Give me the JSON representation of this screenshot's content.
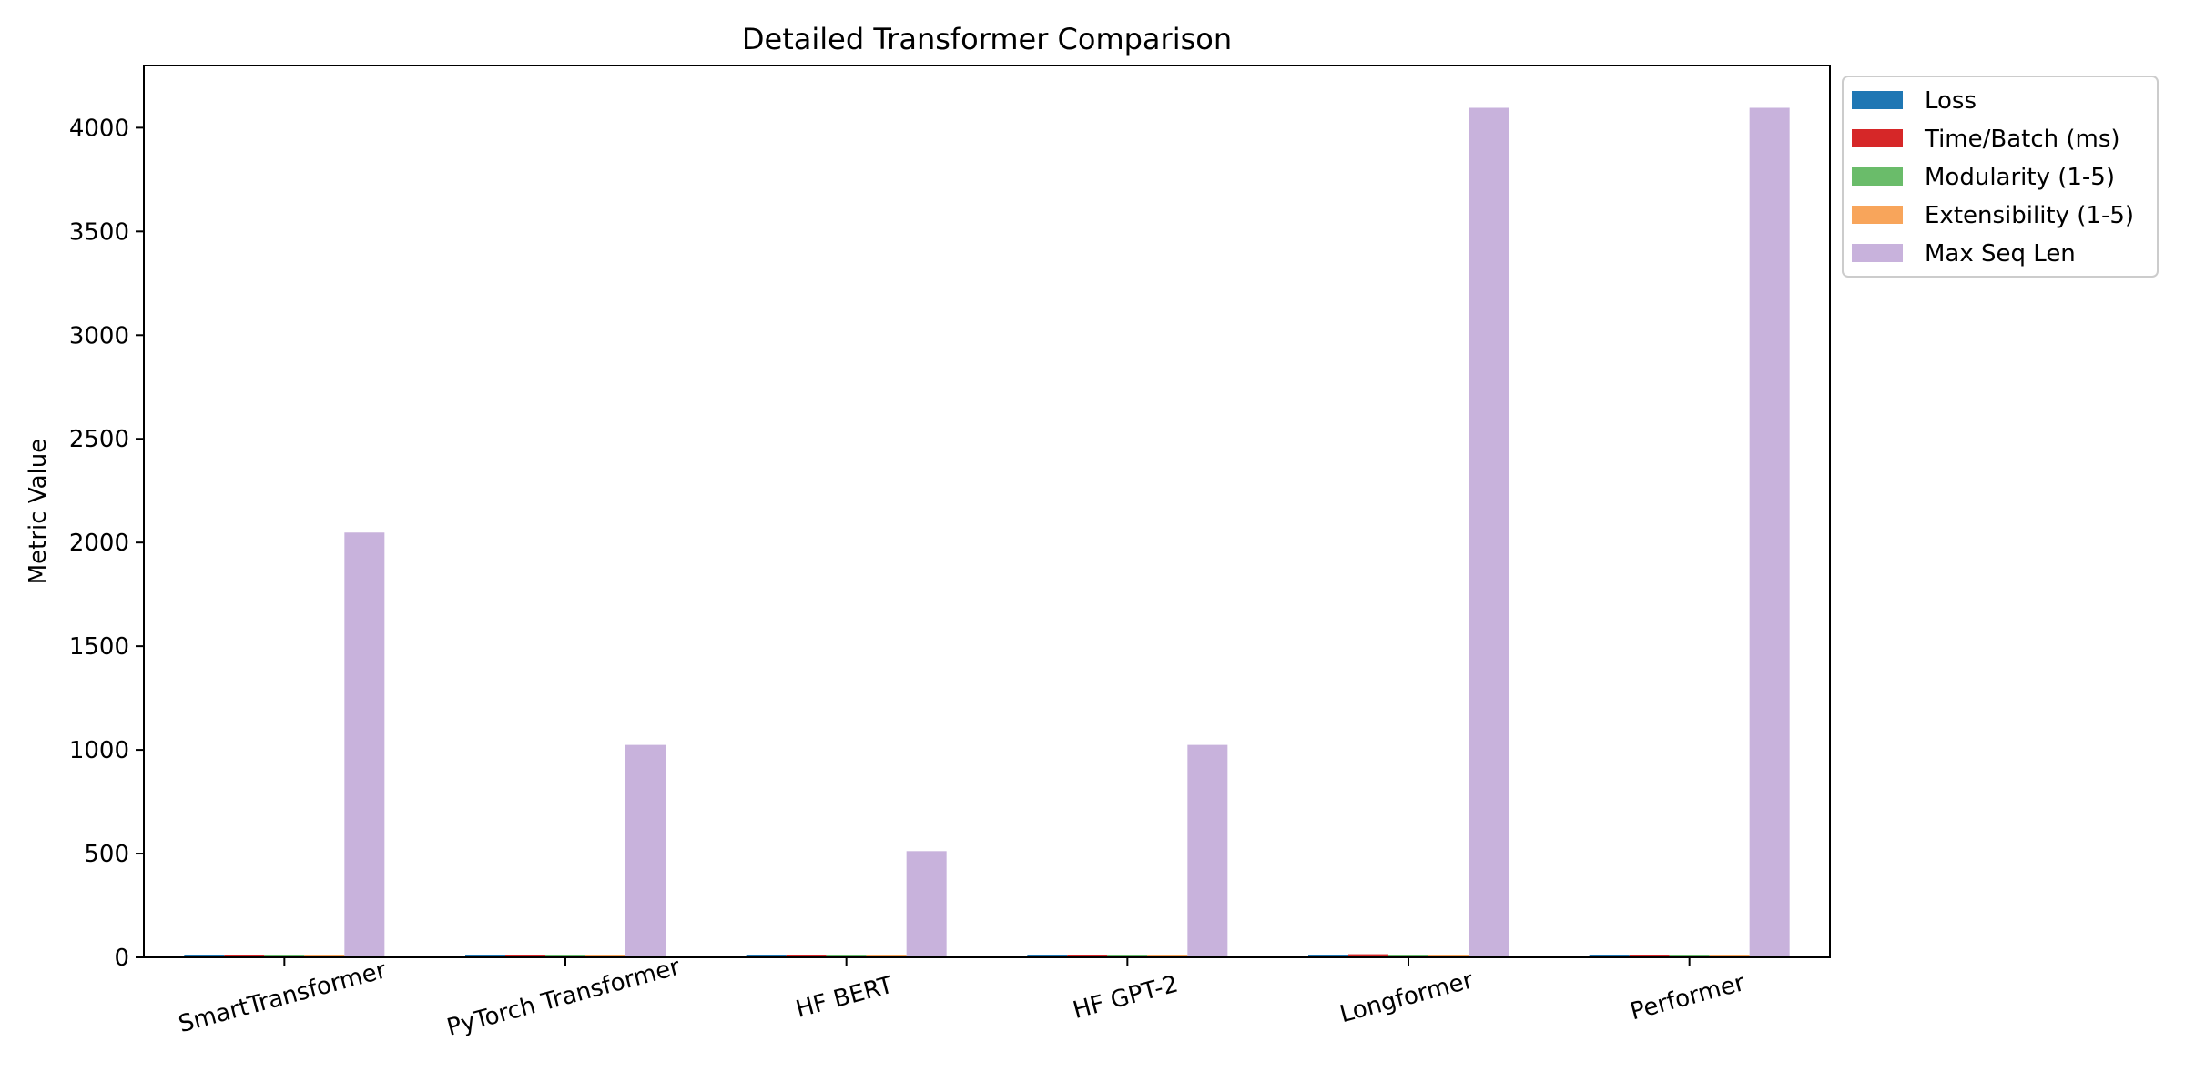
{
  "chart_data": {
    "type": "bar",
    "title": "Detailed Transformer Comparison",
    "xlabel": "",
    "ylabel": "Metric Value",
    "categories": [
      "SmartTransformer",
      "PyTorch Transformer",
      "HF BERT",
      "HF GPT-2",
      "Longformer",
      "Performer"
    ],
    "series": [
      {
        "name": "Loss",
        "color": "#1f77b4",
        "values": [
          2.5,
          2.3,
          2.0,
          2.8,
          3.0,
          2.4
        ]
      },
      {
        "name": "Time/Batch (ms)",
        "color": "#d62728",
        "values": [
          10,
          4,
          6,
          12,
          15,
          8
        ]
      },
      {
        "name": "Modularity (1-5)",
        "color": "#6abc6a",
        "values": [
          5,
          3,
          2,
          2,
          3,
          3
        ]
      },
      {
        "name": "Extensibility (1-5)",
        "color": "#f8a55b",
        "values": [
          5,
          3,
          3,
          3,
          2,
          3
        ]
      },
      {
        "name": "Max Seq Len",
        "color": "#c8b2dc",
        "values": [
          2048,
          1024,
          512,
          1024,
          4096,
          4096
        ]
      }
    ],
    "ylim": [
      0,
      4300
    ],
    "yticks": [
      0,
      500,
      1000,
      1500,
      2000,
      2500,
      3000,
      3500,
      4000
    ],
    "grid": false,
    "legend_position": "outside-top-right"
  }
}
